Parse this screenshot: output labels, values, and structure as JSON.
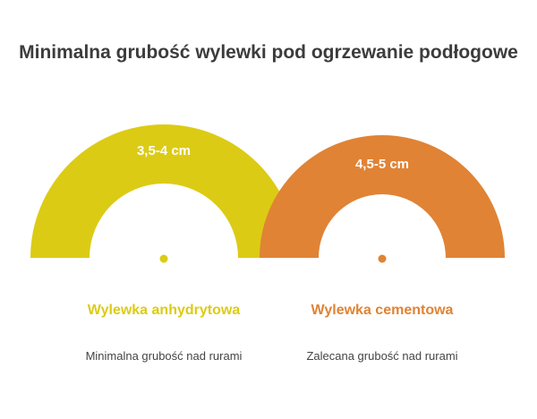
{
  "title": "Minimalna grubość wylewki pod ogrzewanie podłogowe",
  "items": [
    {
      "arc_label": "3,5-4 cm",
      "name": "Wylewka anhydrytowa",
      "description": "Minimalna grubość nad rurami",
      "color": "#dccb14"
    },
    {
      "arc_label": "4,5-5 cm",
      "name": "Wylewka cementowa",
      "description": "Zalecana grubość nad rurami",
      "color": "#e08335"
    }
  ]
}
